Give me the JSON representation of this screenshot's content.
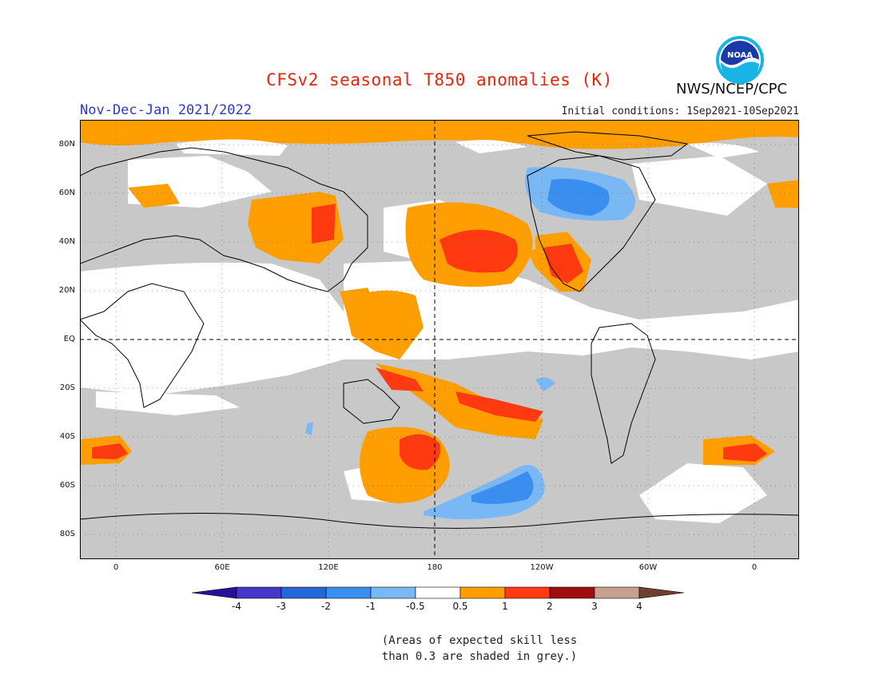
{
  "title": "CFSv2 seasonal T850 anomalies (K)",
  "period": "Nov-Dec-Jan 2021/2022",
  "initial_conditions": "Initial conditions: 1Sep2021-10Sep2021",
  "organization": "NWS/NCEP/CPC",
  "logo_text": "NOAA",
  "lat_labels": [
    "80N",
    "60N",
    "40N",
    "20N",
    "EQ",
    "20S",
    "40S",
    "60S",
    "80S"
  ],
  "lon_labels": [
    "0",
    "60E",
    "120E",
    "180",
    "120W",
    "60W",
    "0"
  ],
  "colorbar": {
    "ticks": [
      "-4",
      "-3",
      "-2",
      "-1",
      "-0.5",
      "0.5",
      "1",
      "2",
      "3",
      "4"
    ],
    "colors": [
      "#2a0f9a",
      "#4637c8",
      "#2468d8",
      "#3a8ef0",
      "#7ab8f5",
      "#ffffff",
      "#ff9e00",
      "#ff3a10",
      "#a00d0d",
      "#c8a090",
      "#6e4030"
    ]
  },
  "map_colors": {
    "grey": "#c8c8c8",
    "land_outline": "#000000"
  },
  "note_line1": "(Areas of expected skill less",
  "note_line2": "than 0.3 are shaded in grey.)"
}
